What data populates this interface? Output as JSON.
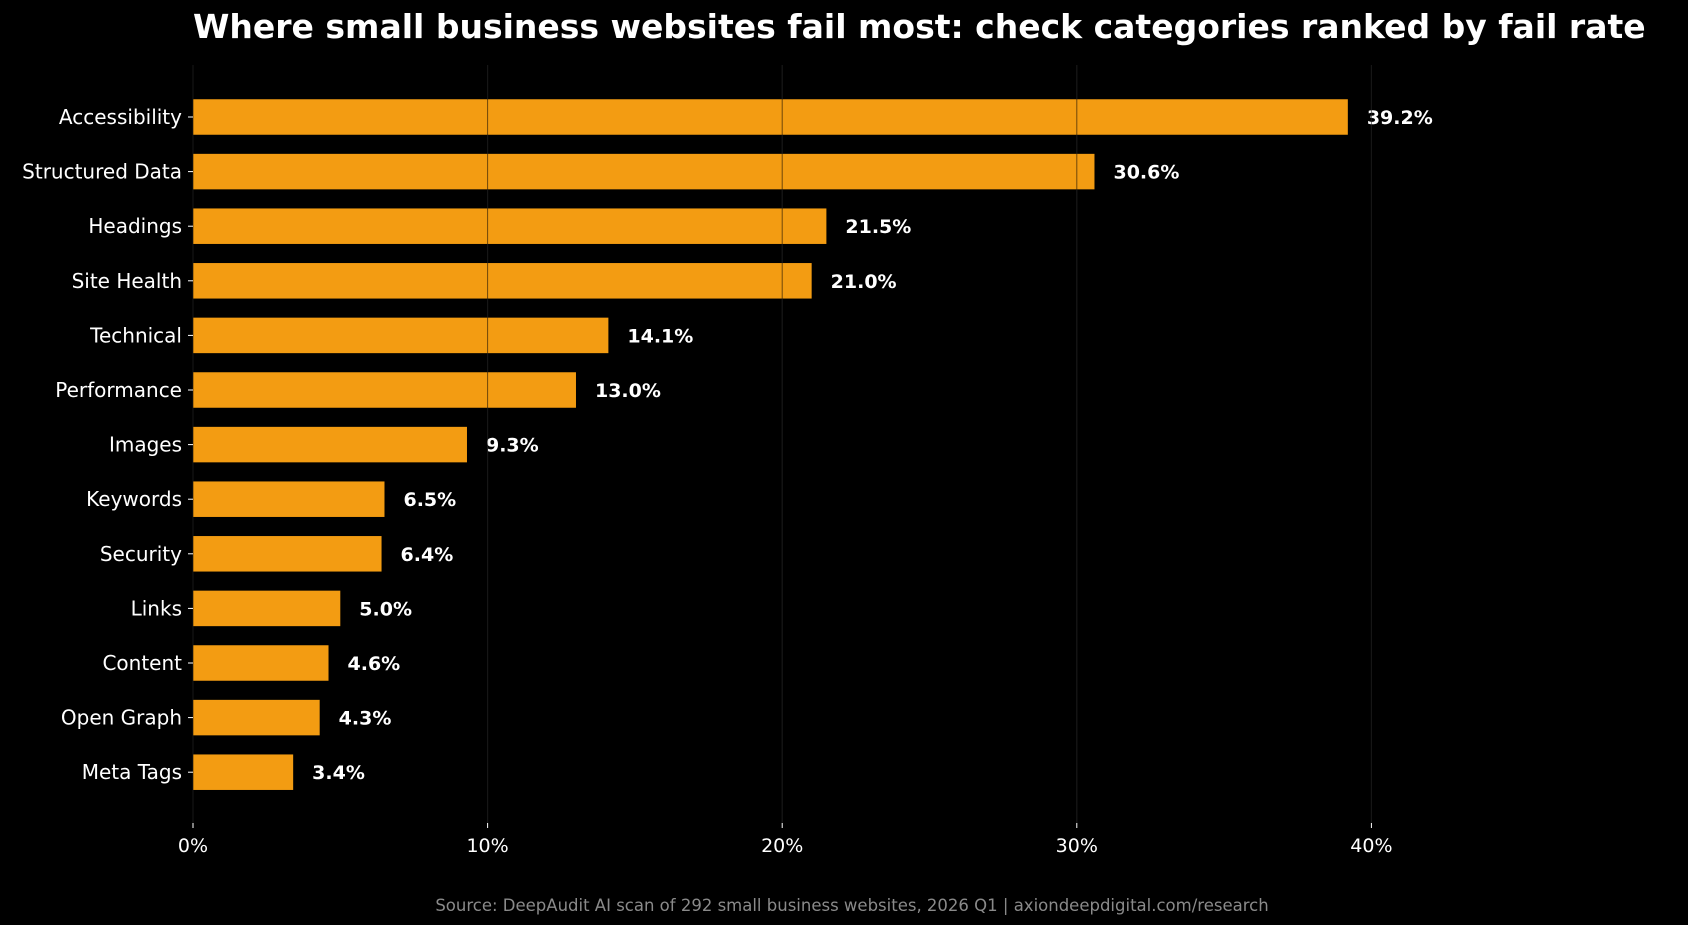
{
  "chart_data": {
    "type": "bar",
    "orientation": "horizontal",
    "title": "Where small business websites fail most: check categories ranked by fail rate",
    "categories": [
      "Accessibility",
      "Structured Data",
      "Headings",
      "Site Health",
      "Technical",
      "Performance",
      "Images",
      "Keywords",
      "Security",
      "Links",
      "Content",
      "Open Graph",
      "Meta Tags"
    ],
    "values": [
      39.2,
      30.6,
      21.5,
      21.0,
      14.1,
      13.0,
      9.3,
      6.5,
      6.4,
      5.0,
      4.6,
      4.3,
      3.4
    ],
    "value_labels": [
      "39.2%",
      "30.6%",
      "21.5%",
      "21.0%",
      "14.1%",
      "13.0%",
      "9.3%",
      "6.5%",
      "6.4%",
      "5.0%",
      "4.6%",
      "4.3%",
      "3.4%"
    ],
    "xticks": [
      0,
      10,
      20,
      30,
      40
    ],
    "xtick_labels": [
      "0%",
      "10%",
      "20%",
      "30%",
      "40%"
    ],
    "xlim": [
      0,
      50
    ],
    "xlabel": "",
    "ylabel": "",
    "grid": "vertical",
    "bar_color": "#f39c12",
    "background": "#000000",
    "source": "Source: DeepAudit AI scan of 292 small business websites, 2026 Q1 | axiondeepdigital.com/research"
  }
}
